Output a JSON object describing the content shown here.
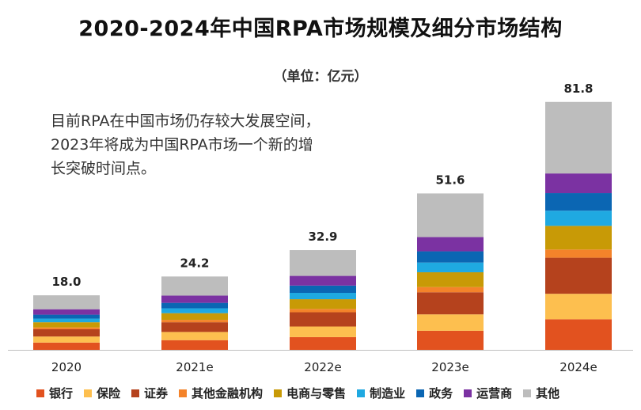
{
  "title": "2020-2024年中国RPA市场规模及细分市场结构",
  "unit_label": "（单位：亿元）",
  "annotation": [
    "目前RPA在中国市场仍存较大发展空间，",
    "2023年将成为中国RPA市场一个新的增",
    "长突破时间点。"
  ],
  "chart_data": {
    "type": "bar",
    "stacked": true,
    "title": "2020-2024年中国RPA市场规模及细分市场结构",
    "ylabel": "亿元",
    "categories": [
      "2020",
      "2021e",
      "2022e",
      "2023e",
      "2024e"
    ],
    "totals": [
      18.0,
      24.2,
      32.9,
      51.6,
      81.8
    ],
    "total_labels": [
      "18.0",
      "24.2",
      "32.9",
      "51.6",
      "81.8"
    ],
    "ylim": [
      0,
      82
    ],
    "series": [
      {
        "name": "银行",
        "color": "#e2521f",
        "values": [
          2.4,
          3.2,
          4.2,
          6.3,
          10.1
        ]
      },
      {
        "name": "保险",
        "color": "#fdbf4f",
        "values": [
          2.0,
          2.7,
          3.5,
          5.4,
          8.4
        ]
      },
      {
        "name": "证券",
        "color": "#b5421d",
        "values": [
          2.4,
          3.2,
          4.7,
          7.3,
          11.9
        ]
      },
      {
        "name": "其他金融机构",
        "color": "#f4832a",
        "values": [
          0.6,
          0.8,
          1.1,
          1.7,
          2.7
        ]
      },
      {
        "name": "电商与零售",
        "color": "#c89a06",
        "values": [
          1.7,
          2.2,
          3.2,
          4.9,
          7.8
        ]
      },
      {
        "name": "制造业",
        "color": "#1fa9e1",
        "values": [
          1.2,
          1.6,
          2.1,
          3.2,
          5.0
        ]
      },
      {
        "name": "政务",
        "color": "#0b66b3",
        "values": [
          1.3,
          1.8,
          2.4,
          3.7,
          5.8
        ]
      },
      {
        "name": "运营商",
        "color": "#7b32a2",
        "values": [
          1.8,
          2.4,
          3.2,
          4.7,
          6.5
        ]
      },
      {
        "name": "其他",
        "color": "#bdbdbd",
        "values": [
          4.6,
          6.3,
          8.5,
          14.4,
          23.6
        ]
      }
    ]
  }
}
